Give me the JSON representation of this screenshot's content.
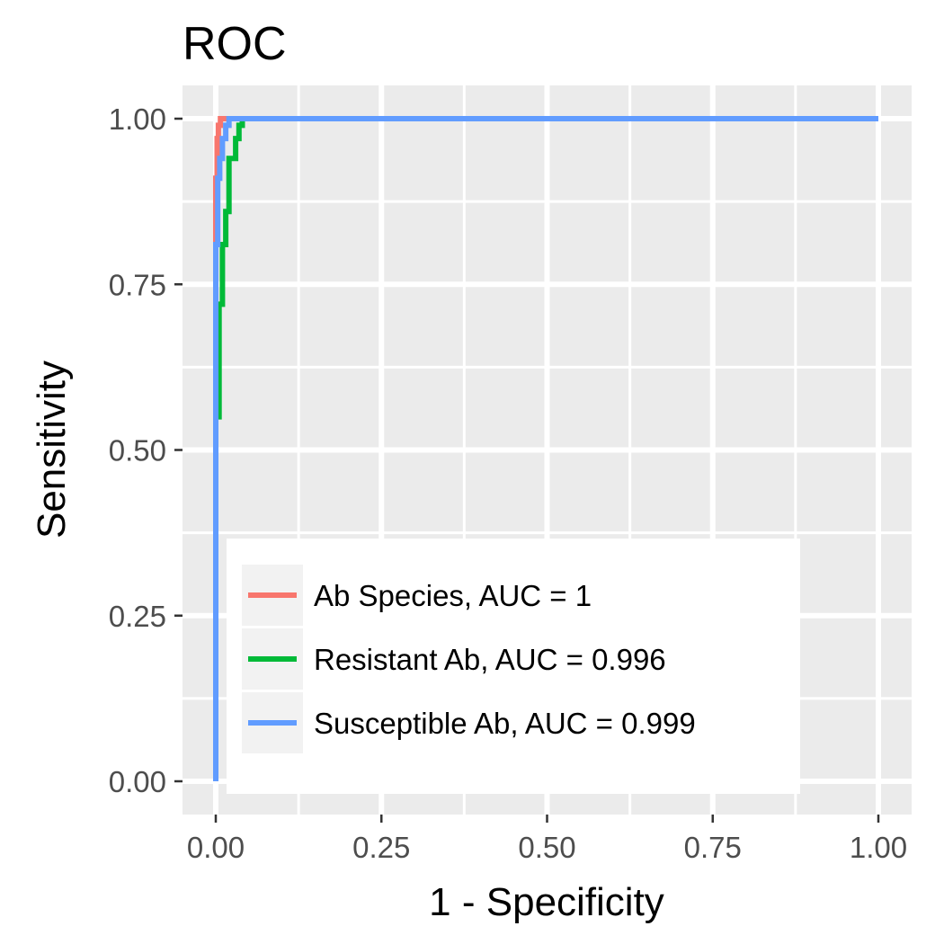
{
  "chart_data": {
    "type": "line",
    "title": "ROC",
    "xlabel": "1 - Specificity",
    "ylabel": "Sensitivity",
    "xlim": [
      0,
      1
    ],
    "ylim": [
      0,
      1
    ],
    "x_ticks": [
      "0.00",
      "0.25",
      "0.50",
      "0.75",
      "1.00"
    ],
    "y_ticks": [
      "0.00",
      "0.25",
      "0.50",
      "0.75",
      "1.00"
    ],
    "grid": true,
    "legend_position": "bottom-right inside",
    "series": [
      {
        "name": "Ab Species, AUC = 1",
        "color": "#F8766D",
        "x": [
          0,
          0,
          0.002,
          0.002,
          0.004,
          0.004,
          0.007,
          0.007,
          1.0
        ],
        "y": [
          0,
          0.91,
          0.91,
          0.97,
          0.97,
          0.99,
          0.99,
          1.0,
          1.0
        ]
      },
      {
        "name": "Resistant Ab, AUC = 0.996",
        "color": "#00BA38",
        "x": [
          0,
          0,
          0.005,
          0.005,
          0.01,
          0.01,
          0.015,
          0.015,
          0.02,
          0.02,
          0.03,
          0.03,
          0.035,
          0.035,
          0.04,
          0.04,
          1.0
        ],
        "y": [
          0,
          0.55,
          0.55,
          0.72,
          0.72,
          0.81,
          0.81,
          0.86,
          0.86,
          0.94,
          0.94,
          0.97,
          0.97,
          0.99,
          0.99,
          1.0,
          1.0
        ]
      },
      {
        "name": "Susceptible Ab, AUC = 0.999",
        "color": "#619CFF",
        "x": [
          0,
          0,
          0.003,
          0.003,
          0.006,
          0.006,
          0.01,
          0.01,
          0.015,
          0.015,
          0.02,
          0.02,
          0.025,
          0.025,
          1.0
        ],
        "y": [
          0,
          0.81,
          0.81,
          0.91,
          0.91,
          0.94,
          0.94,
          0.97,
          0.97,
          0.99,
          0.99,
          1.0,
          1.0,
          1.0,
          1.0
        ]
      }
    ]
  }
}
